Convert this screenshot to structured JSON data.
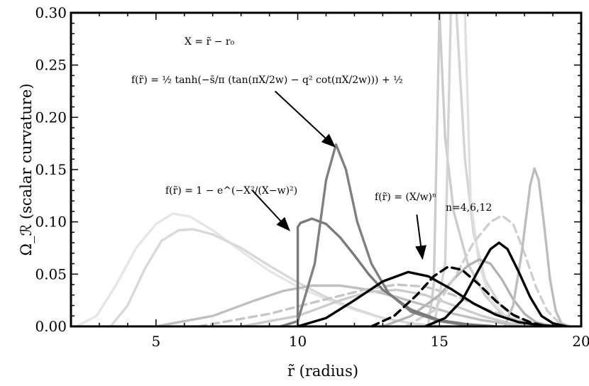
{
  "chart_data": {
    "type": "line",
    "xlabel": "r̃ (radius)",
    "ylabel": "Ω_ℛ (scalar curvature)",
    "xlim": [
      2,
      20
    ],
    "ylim": [
      0,
      0.3
    ],
    "x_ticks": [
      "5",
      "10",
      "15",
      "20"
    ],
    "y_ticks": [
      "0.00",
      "0.05",
      "0.10",
      "0.15",
      "0.20",
      "0.25",
      "0.30"
    ],
    "grid": false,
    "legend": "none",
    "series": [
      {
        "color": "#e6e6e6",
        "dash": false,
        "points": [
          [
            2.2,
            0
          ],
          [
            2.9,
            0.01
          ],
          [
            3.6,
            0.04
          ],
          [
            4.3,
            0.075
          ],
          [
            5.0,
            0.098
          ],
          [
            5.6,
            0.108
          ],
          [
            6.2,
            0.105
          ],
          [
            7.0,
            0.092
          ],
          [
            8.0,
            0.072
          ],
          [
            9.0,
            0.053
          ],
          [
            10.0,
            0.038
          ],
          [
            11.0,
            0.026
          ],
          [
            12.0,
            0.016
          ],
          [
            13.0,
            0.008
          ],
          [
            14.0,
            0.003
          ],
          [
            15.0,
            0
          ]
        ]
      },
      {
        "color": "#d9d9d9",
        "dash": false,
        "points": [
          [
            3.4,
            0
          ],
          [
            4.0,
            0.02
          ],
          [
            4.6,
            0.055
          ],
          [
            5.2,
            0.082
          ],
          [
            5.8,
            0.092
          ],
          [
            6.3,
            0.093
          ],
          [
            7.0,
            0.088
          ],
          [
            8.0,
            0.075
          ],
          [
            9.0,
            0.058
          ],
          [
            10.0,
            0.042
          ],
          [
            11.0,
            0.028
          ],
          [
            12.0,
            0.017
          ],
          [
            13.0,
            0.008
          ],
          [
            14.0,
            0.003
          ],
          [
            15.0,
            0
          ]
        ]
      },
      {
        "color": "#bfbfbf",
        "dash": false,
        "points": [
          [
            5.0,
            0
          ],
          [
            7.0,
            0.01
          ],
          [
            8.5,
            0.025
          ],
          [
            9.5,
            0.034
          ],
          [
            10.5,
            0.039
          ],
          [
            11.5,
            0.039
          ],
          [
            12.5,
            0.035
          ],
          [
            13.5,
            0.028
          ],
          [
            14.5,
            0.02
          ],
          [
            15.5,
            0.012
          ],
          [
            16.5,
            0.006
          ],
          [
            17.5,
            0.002
          ],
          [
            18.5,
            0
          ]
        ]
      },
      {
        "color": "#c6c6c6",
        "dash": true,
        "points": [
          [
            6.5,
            0
          ],
          [
            9.0,
            0.012
          ],
          [
            11.0,
            0.026
          ],
          [
            12.5,
            0.036
          ],
          [
            13.5,
            0.04
          ],
          [
            14.5,
            0.038
          ],
          [
            15.5,
            0.03
          ],
          [
            16.5,
            0.018
          ],
          [
            17.5,
            0.008
          ],
          [
            18.5,
            0.002
          ],
          [
            19.5,
            0
          ]
        ]
      },
      {
        "color": "#cccccc",
        "dash": false,
        "points": [
          [
            8.0,
            0
          ],
          [
            10.0,
            0.01
          ],
          [
            11.5,
            0.025
          ],
          [
            12.5,
            0.033
          ],
          [
            13.5,
            0.035
          ],
          [
            14.5,
            0.03
          ],
          [
            15.5,
            0.02
          ],
          [
            16.5,
            0.01
          ],
          [
            17.5,
            0.003
          ],
          [
            18.5,
            0
          ]
        ]
      },
      {
        "color": "#cccccc",
        "dash": false,
        "points": [
          [
            14.6,
            0
          ],
          [
            14.8,
            0.04
          ],
          [
            15.0,
            0.3
          ]
        ]
      },
      {
        "color": "#cccccc",
        "dash": false,
        "points": [
          [
            15.0,
            0.3
          ],
          [
            15.2,
            0.18
          ],
          [
            15.5,
            0.11
          ],
          [
            16.0,
            0.06
          ],
          [
            16.6,
            0.03
          ],
          [
            17.2,
            0.012
          ],
          [
            18.0,
            0.002
          ],
          [
            18.8,
            0
          ]
        ]
      },
      {
        "color": "#d4d4d4",
        "dash": false,
        "points": [
          [
            14.8,
            0
          ],
          [
            15.2,
            0.06
          ],
          [
            15.4,
            0.3
          ]
        ]
      },
      {
        "color": "#d4d4d4",
        "dash": false,
        "points": [
          [
            15.6,
            0.3
          ],
          [
            15.9,
            0.16
          ],
          [
            16.2,
            0.09
          ],
          [
            16.6,
            0.045
          ],
          [
            17.2,
            0.018
          ],
          [
            18.0,
            0.004
          ],
          [
            18.8,
            0
          ]
        ]
      },
      {
        "color": "#e0e0e0",
        "dash": false,
        "points": [
          [
            15.9,
            0.3
          ],
          [
            16.1,
            0.12
          ],
          [
            16.4,
            0.06
          ],
          [
            16.8,
            0.025
          ],
          [
            17.4,
            0.008
          ],
          [
            18.2,
            0
          ]
        ]
      },
      {
        "color": "#b3b3b3",
        "dash": false,
        "points": [
          [
            13.0,
            0
          ],
          [
            14.0,
            0.01
          ],
          [
            15.0,
            0.03
          ],
          [
            15.6,
            0.048
          ],
          [
            16.0,
            0.058
          ],
          [
            16.4,
            0.064
          ],
          [
            16.8,
            0.06
          ],
          [
            17.2,
            0.045
          ],
          [
            17.6,
            0.026
          ],
          [
            18.0,
            0.012
          ],
          [
            18.4,
            0.004
          ],
          [
            19.0,
            0
          ]
        ]
      },
      {
        "color": "#cfcfcf",
        "dash": true,
        "points": [
          [
            13.8,
            0
          ],
          [
            14.8,
            0.015
          ],
          [
            15.6,
            0.05
          ],
          [
            16.2,
            0.08
          ],
          [
            16.8,
            0.1
          ],
          [
            17.2,
            0.106
          ],
          [
            17.6,
            0.098
          ],
          [
            18.0,
            0.07
          ],
          [
            18.4,
            0.038
          ],
          [
            18.8,
            0.015
          ],
          [
            19.2,
            0.004
          ],
          [
            19.6,
            0
          ]
        ]
      },
      {
        "color": "#bdbdbd",
        "dash": false,
        "points": [
          [
            17.3,
            0
          ],
          [
            17.6,
            0.02
          ],
          [
            17.9,
            0.07
          ],
          [
            18.2,
            0.135
          ],
          [
            18.35,
            0.151
          ],
          [
            18.5,
            0.14
          ],
          [
            18.7,
            0.095
          ],
          [
            18.9,
            0.045
          ],
          [
            19.1,
            0.015
          ],
          [
            19.3,
            0.003
          ],
          [
            19.6,
            0
          ]
        ]
      },
      {
        "color": "#808080",
        "dash": false,
        "points": [
          [
            9.4,
            0
          ],
          [
            10.0,
            0.005
          ],
          [
            10.6,
            0.06
          ],
          [
            11.0,
            0.14
          ],
          [
            11.35,
            0.174
          ],
          [
            11.7,
            0.15
          ],
          [
            12.1,
            0.1
          ],
          [
            12.6,
            0.06
          ],
          [
            13.2,
            0.032
          ],
          [
            14.0,
            0.014
          ],
          [
            15.0,
            0.005
          ],
          [
            16.0,
            0.001
          ],
          [
            17.0,
            0
          ]
        ]
      },
      {
        "color": "#7a7a7a",
        "dash": false,
        "points": [
          [
            10.0,
            0
          ],
          [
            10.0,
            0.095
          ],
          [
            10.1,
            0.099
          ],
          [
            10.5,
            0.103
          ],
          [
            11.0,
            0.098
          ],
          [
            11.5,
            0.085
          ],
          [
            12.0,
            0.068
          ],
          [
            12.5,
            0.05
          ],
          [
            13.0,
            0.035
          ],
          [
            14.0,
            0.016
          ],
          [
            15.0,
            0.006
          ],
          [
            16.0,
            0.002
          ],
          [
            17.0,
            0
          ]
        ]
      },
      {
        "color": "#000000",
        "dash": false,
        "points": [
          [
            10.0,
            0
          ],
          [
            11.0,
            0.008
          ],
          [
            12.0,
            0.025
          ],
          [
            13.0,
            0.043
          ],
          [
            13.9,
            0.052
          ],
          [
            14.6,
            0.048
          ],
          [
            15.4,
            0.036
          ],
          [
            16.2,
            0.022
          ],
          [
            17.0,
            0.011
          ],
          [
            17.8,
            0.004
          ],
          [
            18.6,
            0.001
          ],
          [
            19.2,
            0
          ]
        ]
      },
      {
        "color": "#000000",
        "dash": true,
        "points": [
          [
            12.6,
            0
          ],
          [
            13.4,
            0.01
          ],
          [
            14.2,
            0.03
          ],
          [
            14.8,
            0.048
          ],
          [
            15.3,
            0.057
          ],
          [
            15.8,
            0.054
          ],
          [
            16.4,
            0.04
          ],
          [
            17.0,
            0.024
          ],
          [
            17.6,
            0.011
          ],
          [
            18.2,
            0.004
          ],
          [
            18.8,
            0
          ]
        ]
      },
      {
        "color": "#000000",
        "dash": false,
        "points": [
          [
            14.5,
            0
          ],
          [
            15.2,
            0.008
          ],
          [
            15.8,
            0.025
          ],
          [
            16.4,
            0.055
          ],
          [
            16.8,
            0.074
          ],
          [
            17.1,
            0.08
          ],
          [
            17.4,
            0.074
          ],
          [
            17.8,
            0.052
          ],
          [
            18.2,
            0.028
          ],
          [
            18.6,
            0.01
          ],
          [
            19.0,
            0.003
          ],
          [
            19.5,
            0
          ]
        ]
      }
    ],
    "annotations": {
      "a1": {
        "l1": "X = r̃ − r₀",
        "l2": "f(r̃) = ½ tanh(−s̄/π (tan(πX/2w) − q² cot(πX/2w))) + ½"
      },
      "a2": {
        "l1": "f(r̃) = 1 − e^(−X²/(X−w)²)"
      },
      "a3": {
        "l1": "f(r̃) = (X/w)ⁿ",
        "l2": "n=4,6,12"
      }
    },
    "arrows": [
      {
        "from": [
          9.2,
          0.225
        ],
        "to": [
          11.3,
          0.172
        ]
      },
      {
        "from": [
          8.4,
          0.13
        ],
        "to": [
          9.7,
          0.092
        ]
      },
      {
        "from": [
          14.2,
          0.107
        ],
        "to": [
          14.4,
          0.065
        ]
      }
    ]
  }
}
